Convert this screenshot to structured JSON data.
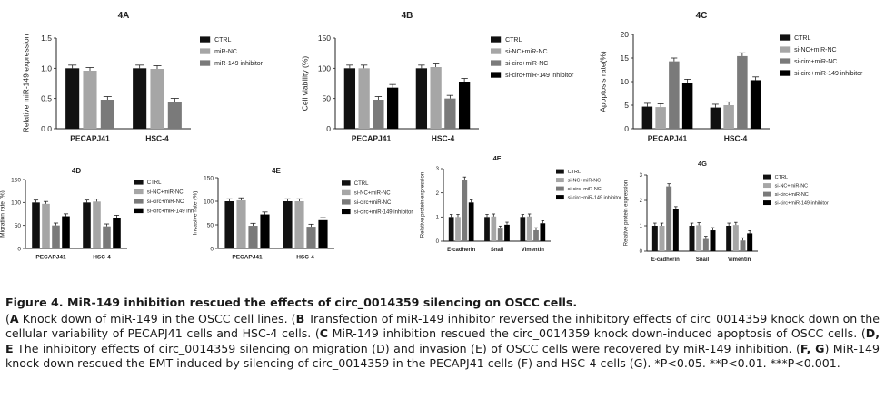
{
  "panels_top": [
    {
      "id": "4A",
      "ylabel": "Relative miR-149 expression",
      "ylim": [
        0,
        1.5
      ],
      "ticks": [
        "0.0",
        "0.5",
        "1.0",
        "1.5"
      ],
      "groups": [
        "PECAPJ41",
        "HSC-4"
      ],
      "legend": [
        "CTRL",
        "miR-NC",
        "miR-149 inhibitor"
      ]
    },
    {
      "id": "4B",
      "ylabel": "Cell viability (%)",
      "ylim": [
        0,
        150
      ],
      "ticks": [
        "0",
        "50",
        "100",
        "150"
      ],
      "groups": [
        "PECAPJ41",
        "HSC-4"
      ],
      "legend": [
        "CTRL",
        "si-NC+miR-NC",
        "si-circ+miR-NC",
        "si-circ+miR-149 inhibitor"
      ]
    },
    {
      "id": "4C",
      "ylabel": "Apoptosis rate(%)",
      "ylim": [
        0,
        20
      ],
      "ticks": [
        "0",
        "5",
        "10",
        "15",
        "20"
      ],
      "groups": [
        "PECAPJ41",
        "HSC-4"
      ],
      "legend": [
        "CTRL",
        "si-NC+miR-NC",
        "si-circ+miR-NC",
        "si-circ+miR-149 inhibitor"
      ]
    }
  ],
  "panels_bottom": [
    {
      "id": "4D",
      "ylabel": "Migration rate (%)",
      "ylim": [
        0,
        150
      ],
      "ticks": [
        "0",
        "50",
        "100",
        "150"
      ],
      "groups": [
        "PECAPJ41",
        "HSC-4"
      ],
      "legend": [
        "CTRL",
        "si-NC+miR-NC",
        "si-circ+miR-NC",
        "si-circ+miR-149 inh"
      ]
    },
    {
      "id": "4E",
      "ylabel": "Invasive rate (%)",
      "ylim": [
        0,
        150
      ],
      "ticks": [
        "0",
        "50",
        "100",
        "150"
      ],
      "groups": [
        "PECAPJ41",
        "HSC-4"
      ],
      "legend": [
        "CTRL",
        "si-NC+miR-NC",
        "si-circ+miR-NC",
        "si-circ+miR-149 inhibitor"
      ]
    },
    {
      "id": "4F",
      "ylabel": "Relative protein expression",
      "ylim": [
        0,
        3
      ],
      "ticks": [
        "0",
        "1",
        "2",
        "3"
      ],
      "groups": [
        "E-cadherin",
        "Snail",
        "Vimentin"
      ],
      "legend": [
        "CTRL",
        "si-NC+miR-NC",
        "si-circ+miR-NC",
        "si-circ+miR-149 inhibitor"
      ]
    },
    {
      "id": "4G",
      "ylabel": "Relative protein expression",
      "ylim": [
        0,
        3
      ],
      "ticks": [
        "0",
        "1",
        "2",
        "3"
      ],
      "groups": [
        "E-cadherin",
        "Snail",
        "Vimentin"
      ],
      "legend": [
        "CTRL",
        "si-NC+miR-NC",
        "si-circ+miR-NC",
        "si-circ+miR-149 inhibitor"
      ]
    }
  ],
  "chart_data": [
    {
      "type": "bar",
      "title": "4A",
      "ylabel": "Relative miR-149 expression",
      "ylim": [
        0,
        1.5
      ],
      "categories": [
        "PECAPJ41",
        "HSC-4"
      ],
      "series": [
        {
          "name": "CTRL",
          "values": [
            1.0,
            1.0
          ]
        },
        {
          "name": "miR-NC",
          "values": [
            0.96,
            0.99
          ]
        },
        {
          "name": "miR-149 inhibitor",
          "values": [
            0.48,
            0.45
          ]
        }
      ]
    },
    {
      "type": "bar",
      "title": "4B",
      "ylabel": "Cell viability (%)",
      "ylim": [
        0,
        150
      ],
      "categories": [
        "PECAPJ41",
        "HSC-4"
      ],
      "series": [
        {
          "name": "CTRL",
          "values": [
            100,
            100
          ]
        },
        {
          "name": "si-NC+miR-NC",
          "values": [
            100,
            102
          ]
        },
        {
          "name": "si-circ+miR-NC",
          "values": [
            48,
            50
          ]
        },
        {
          "name": "si-circ+miR-149 inhibitor",
          "values": [
            68,
            78
          ]
        }
      ]
    },
    {
      "type": "bar",
      "title": "4C",
      "ylabel": "Apoptosis rate(%)",
      "ylim": [
        0,
        20
      ],
      "categories": [
        "PECAPJ41",
        "HSC-4"
      ],
      "series": [
        {
          "name": "CTRL",
          "values": [
            4.7,
            4.5
          ]
        },
        {
          "name": "si-NC+miR-NC",
          "values": [
            4.6,
            5.0
          ]
        },
        {
          "name": "si-circ+miR-NC",
          "values": [
            14.3,
            15.4
          ]
        },
        {
          "name": "si-circ+miR-149 inhibitor",
          "values": [
            9.8,
            10.3
          ]
        }
      ]
    },
    {
      "type": "bar",
      "title": "4D",
      "ylabel": "Migration rate (%)",
      "ylim": [
        0,
        150
      ],
      "categories": [
        "PECAPJ41",
        "HSC-4"
      ],
      "series": [
        {
          "name": "CTRL",
          "values": [
            100,
            100
          ]
        },
        {
          "name": "si-NC+miR-NC",
          "values": [
            97,
            102
          ]
        },
        {
          "name": "si-circ+miR-NC",
          "values": [
            50,
            48
          ]
        },
        {
          "name": "si-circ+miR-149 inh",
          "values": [
            70,
            67
          ]
        }
      ]
    },
    {
      "type": "bar",
      "title": "4E",
      "ylabel": "Invasive rate (%)",
      "ylim": [
        0,
        150
      ],
      "categories": [
        "PECAPJ41",
        "HSC-4"
      ],
      "series": [
        {
          "name": "CTRL",
          "values": [
            100,
            100
          ]
        },
        {
          "name": "si-NC+miR-NC",
          "values": [
            102,
            100
          ]
        },
        {
          "name": "si-circ+miR-NC",
          "values": [
            48,
            46
          ]
        },
        {
          "name": "si-circ+miR-149 inhibitor",
          "values": [
            72,
            60
          ]
        }
      ]
    },
    {
      "type": "bar",
      "title": "4F",
      "ylabel": "Relative protein expression",
      "ylim": [
        0,
        3
      ],
      "categories": [
        "E-cadherin",
        "Snail",
        "Vimentin"
      ],
      "series": [
        {
          "name": "CTRL",
          "values": [
            1.0,
            1.0,
            1.0
          ]
        },
        {
          "name": "si-NC+miR-NC",
          "values": [
            1.0,
            1.02,
            1.02
          ]
        },
        {
          "name": "si-circ+miR-NC",
          "values": [
            2.55,
            0.52,
            0.45
          ]
        },
        {
          "name": "si-circ+miR-149 inhibitor",
          "values": [
            1.6,
            0.68,
            0.74
          ]
        }
      ]
    },
    {
      "type": "bar",
      "title": "4G",
      "ylabel": "Relative protein expression",
      "ylim": [
        0,
        3
      ],
      "categories": [
        "E-cadherin",
        "Snail",
        "Vimentin"
      ],
      "series": [
        {
          "name": "CTRL",
          "values": [
            1.0,
            1.0,
            1.0
          ]
        },
        {
          "name": "si-NC+miR-NC",
          "values": [
            1.0,
            1.02,
            1.03
          ]
        },
        {
          "name": "si-circ+miR-NC",
          "values": [
            2.55,
            0.48,
            0.42
          ]
        },
        {
          "name": "si-circ+miR-149 inhibitor",
          "values": [
            1.65,
            0.82,
            0.7
          ]
        }
      ]
    }
  ],
  "colors": {
    "series": [
      "#111111",
      "#a6a6a6",
      "#7a7a7a",
      "#000000"
    ],
    "axis": "#222222"
  },
  "caption": {
    "title": "Figure 4. MiR-149 inhibition rescued the effects of circ_0014359 silencing on OSCC cells.",
    "a_label": "A",
    "a_text": " Knock down of miR-149 in the OSCC cell lines. (",
    "b_label": "B",
    "b_text": " Transfection of miR-149 inhibitor reversed the inhibitory effects of circ_0014359 knock down on the cellular variability of PECAPJ41 cells and HSC-4 cells. (",
    "c_label": "C",
    "c_text": " MiR-149 inhibition rescued the circ_0014359 knock down-induced apoptosis of OSCC cells. (",
    "de_label": "D, E",
    "de_text": " The inhibitory effects of circ_0014359 silencing on migration (D) and invasion (E) of OSCC cells were recovered by miR-149 inhibition. (",
    "fg_label": "F, G",
    "fg_text": " MiR-149 knock down rescued the EMT induced by silencing of circ_0014359 in the PECAPJ41 cells (F) and HSC-4 cells (G). ",
    "sig1": "*P<0.05.",
    "sig2": "**P<0.01.",
    "sig3": "***P<0.001."
  }
}
